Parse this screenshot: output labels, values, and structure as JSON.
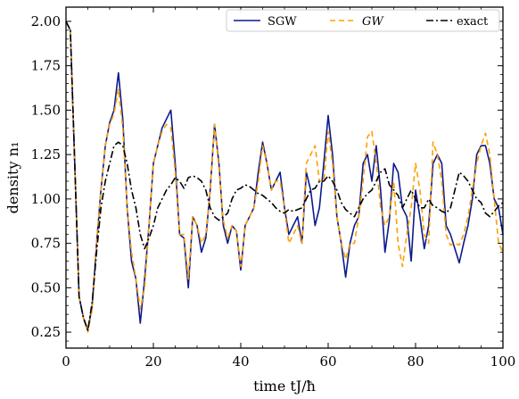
{
  "chart_data": {
    "type": "line",
    "title": "",
    "xlabel": "time tJ/ħ",
    "ylabel": "density n₁",
    "xlim": [
      0,
      100
    ],
    "ylim": [
      0.16,
      2.08
    ],
    "x_ticks": [
      0,
      20,
      40,
      60,
      80,
      100
    ],
    "x_tick_labels": [
      "0",
      "20",
      "40",
      "60",
      "80",
      "100"
    ],
    "y_ticks": [
      0.25,
      0.5,
      0.75,
      1.0,
      1.25,
      1.5,
      1.75,
      2.0
    ],
    "y_tick_labels": [
      "0.25",
      "0.50",
      "0.75",
      "1.00",
      "1.25",
      "1.50",
      "1.75",
      "2.00"
    ],
    "grid": false,
    "legend_position": "top-right",
    "series": [
      {
        "name": "SGW",
        "color": "#0c1a8c",
        "dash": "solid",
        "x": [
          0,
          1,
          2,
          3,
          4,
          5,
          6,
          7,
          8,
          9,
          10,
          11,
          12,
          13,
          14,
          15,
          16,
          17,
          18,
          19,
          20,
          21,
          22,
          23,
          24,
          25,
          26,
          27,
          28,
          29,
          30,
          31,
          32,
          33,
          34,
          35,
          36,
          37,
          38,
          39,
          40,
          41,
          42,
          43,
          44,
          45,
          46,
          47,
          48,
          49,
          50,
          51,
          52,
          53,
          54,
          55,
          56,
          57,
          58,
          59,
          60,
          61,
          62,
          63,
          64,
          65,
          66,
          67,
          68,
          69,
          70,
          71,
          72,
          73,
          74,
          75,
          76,
          77,
          78,
          79,
          80,
          81,
          82,
          83,
          84,
          85,
          86,
          87,
          88,
          89,
          90,
          91,
          92,
          93,
          94,
          95,
          96,
          97,
          98,
          99,
          100
        ],
        "y": [
          2.0,
          1.95,
          1.2,
          0.45,
          0.33,
          0.26,
          0.4,
          0.75,
          1.05,
          1.3,
          1.43,
          1.5,
          1.71,
          1.45,
          0.95,
          0.65,
          0.55,
          0.3,
          0.55,
          0.85,
          1.2,
          1.3,
          1.4,
          1.45,
          1.5,
          1.2,
          0.8,
          0.78,
          0.5,
          0.9,
          0.85,
          0.7,
          0.78,
          1.05,
          1.42,
          1.2,
          0.85,
          0.75,
          0.85,
          0.82,
          0.6,
          0.85,
          0.9,
          0.95,
          1.15,
          1.32,
          1.2,
          1.05,
          1.1,
          1.15,
          0.95,
          0.8,
          0.85,
          0.9,
          0.75,
          1.15,
          1.05,
          0.85,
          0.95,
          1.2,
          1.47,
          1.25,
          0.9,
          0.75,
          0.56,
          0.75,
          0.85,
          0.9,
          1.2,
          1.25,
          1.1,
          1.3,
          1.05,
          0.7,
          0.88,
          1.2,
          1.15,
          0.95,
          0.9,
          0.65,
          1.05,
          0.9,
          0.72,
          0.85,
          1.2,
          1.25,
          1.2,
          0.85,
          0.8,
          0.72,
          0.64,
          0.75,
          0.85,
          1.0,
          1.25,
          1.3,
          1.3,
          1.2,
          1.0,
          0.95,
          0.8
        ]
      },
      {
        "name": "GW",
        "color": "#ff9f00",
        "dash": "dashed",
        "x": [
          0,
          1,
          2,
          3,
          4,
          5,
          6,
          7,
          8,
          9,
          10,
          11,
          12,
          13,
          14,
          15,
          16,
          17,
          18,
          19,
          20,
          21,
          22,
          23,
          24,
          25,
          26,
          27,
          28,
          29,
          30,
          31,
          32,
          33,
          34,
          35,
          36,
          37,
          38,
          39,
          40,
          41,
          42,
          43,
          44,
          45,
          46,
          47,
          48,
          49,
          50,
          51,
          52,
          53,
          54,
          55,
          56,
          57,
          58,
          59,
          60,
          61,
          62,
          63,
          64,
          65,
          66,
          67,
          68,
          69,
          70,
          71,
          72,
          73,
          74,
          75,
          76,
          77,
          78,
          79,
          80,
          81,
          82,
          83,
          84,
          85,
          86,
          87,
          88,
          89,
          90,
          91,
          92,
          93,
          94,
          95,
          96,
          97,
          98,
          99,
          100
        ],
        "y": [
          2.0,
          1.95,
          1.2,
          0.45,
          0.33,
          0.25,
          0.38,
          0.75,
          1.05,
          1.3,
          1.42,
          1.48,
          1.62,
          1.4,
          0.95,
          0.7,
          0.55,
          0.38,
          0.5,
          0.85,
          1.2,
          1.3,
          1.38,
          1.42,
          1.4,
          1.15,
          0.8,
          0.8,
          0.55,
          0.9,
          0.85,
          0.75,
          0.8,
          1.05,
          1.42,
          1.18,
          0.88,
          0.78,
          0.85,
          0.82,
          0.62,
          0.85,
          0.9,
          0.95,
          1.1,
          1.3,
          1.2,
          1.05,
          1.1,
          1.1,
          0.95,
          0.75,
          0.8,
          0.85,
          0.75,
          1.2,
          1.25,
          1.3,
          1.1,
          1.1,
          1.38,
          1.2,
          0.9,
          0.75,
          0.66,
          0.75,
          0.75,
          0.9,
          1.1,
          1.35,
          1.38,
          1.2,
          0.95,
          0.85,
          0.9,
          1.1,
          0.75,
          0.62,
          0.8,
          0.95,
          1.2,
          1.05,
          0.8,
          0.75,
          1.32,
          1.25,
          1.1,
          0.8,
          0.74,
          0.75,
          0.74,
          0.8,
          0.9,
          1.05,
          1.2,
          1.3,
          1.37,
          1.25,
          1.0,
          0.75,
          0.7
        ]
      },
      {
        "name": "exact",
        "color": "#000000",
        "dash": "dashdot",
        "x": [
          0,
          1,
          2,
          3,
          4,
          5,
          6,
          7,
          8,
          9,
          10,
          11,
          12,
          13,
          14,
          15,
          16,
          17,
          18,
          19,
          20,
          21,
          22,
          23,
          24,
          25,
          26,
          27,
          28,
          29,
          30,
          31,
          32,
          33,
          34,
          35,
          36,
          37,
          38,
          39,
          40,
          41,
          42,
          43,
          44,
          45,
          46,
          47,
          48,
          49,
          50,
          51,
          52,
          53,
          54,
          55,
          56,
          57,
          58,
          59,
          60,
          61,
          62,
          63,
          64,
          65,
          66,
          67,
          68,
          69,
          70,
          71,
          72,
          73,
          74,
          75,
          76,
          77,
          78,
          79,
          80,
          81,
          82,
          83,
          84,
          85,
          86,
          87,
          88,
          89,
          90,
          91,
          92,
          93,
          94,
          95,
          96,
          97,
          98,
          99,
          100
        ],
        "y": [
          2.0,
          1.95,
          1.2,
          0.45,
          0.33,
          0.26,
          0.42,
          0.7,
          0.95,
          1.1,
          1.2,
          1.3,
          1.32,
          1.3,
          1.2,
          1.05,
          0.95,
          0.8,
          0.72,
          0.78,
          0.85,
          0.95,
          1.0,
          1.05,
          1.08,
          1.12,
          1.1,
          1.06,
          1.12,
          1.13,
          1.12,
          1.1,
          1.05,
          0.95,
          0.9,
          0.88,
          0.9,
          0.92,
          1.0,
          1.05,
          1.06,
          1.08,
          1.07,
          1.05,
          1.03,
          1.02,
          1.0,
          0.98,
          0.95,
          0.93,
          0.92,
          0.94,
          0.93,
          0.94,
          0.95,
          1.0,
          1.05,
          1.06,
          1.1,
          1.1,
          1.13,
          1.1,
          1.05,
          0.98,
          0.94,
          0.92,
          0.9,
          0.95,
          1.0,
          1.03,
          1.05,
          1.1,
          1.15,
          1.17,
          1.08,
          1.05,
          1.02,
          0.95,
          1.0,
          1.05,
          1.0,
          0.95,
          0.95,
          1.0,
          0.96,
          0.95,
          0.93,
          0.92,
          0.95,
          1.05,
          1.15,
          1.13,
          1.1,
          1.05,
          1.0,
          0.98,
          0.92,
          0.9,
          0.93,
          0.96,
          0.98
        ]
      }
    ]
  }
}
